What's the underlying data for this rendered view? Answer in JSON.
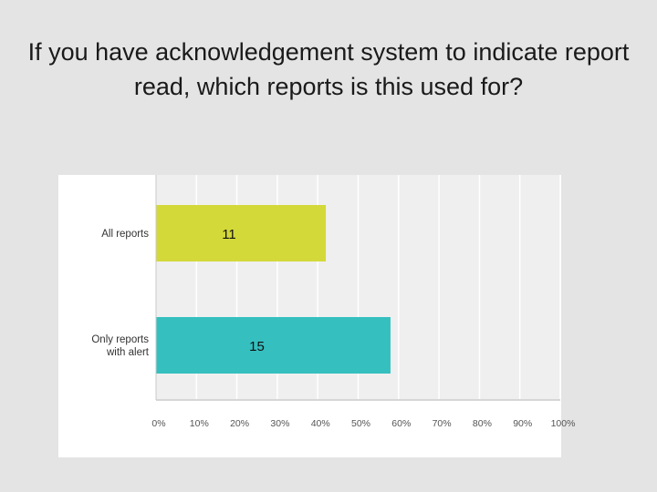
{
  "slide": {
    "title": "If you have acknowledgement system to indicate report read, which reports is this used for?"
  },
  "chart_data": {
    "type": "bar",
    "orientation": "horizontal",
    "categories": [
      "All reports",
      "Only reports with alert"
    ],
    "values_percent": [
      42,
      58
    ],
    "data_labels": [
      "11",
      "15"
    ],
    "xlim": [
      0,
      100
    ],
    "x_ticks": [
      0,
      10,
      20,
      30,
      40,
      50,
      60,
      70,
      80,
      90,
      100
    ],
    "x_tick_labels": [
      "0%",
      "10%",
      "20%",
      "30%",
      "40%",
      "50%",
      "60%",
      "70%",
      "80%",
      "90%",
      "100%"
    ],
    "grid": true,
    "colors": [
      "#d4d93a",
      "#35bfbf"
    ]
  }
}
